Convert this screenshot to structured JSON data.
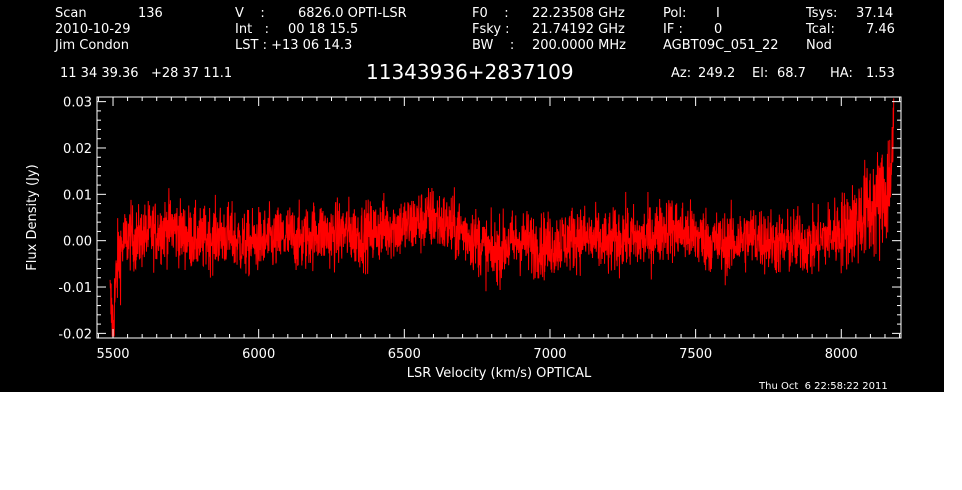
{
  "header": {
    "scan_label": "Scan",
    "scan_number": "136",
    "date": "2010-10-29",
    "observer": "Jim Condon",
    "v_label": "V    :",
    "v_value": "6826.0 OPTI-LSR",
    "int_label": "Int   :",
    "int_value": "00 18 15.5",
    "lst_label": "LST : +13 06 14.3",
    "f0_label": "F0    :",
    "f0_value": "22.23508 GHz",
    "fsky_label": "Fsky :",
    "fsky_value": "21.74192 GHz",
    "bw_label": "BW    :",
    "bw_value": "200.0000 MHz",
    "pol_label": "Pol:",
    "pol_value": "I",
    "if_label": "IF :",
    "if_value": "0",
    "project": "AGBT09C_051_22",
    "tsys_label": "Tsys:",
    "tsys_value": "37.14",
    "tcal_label": "Tcal:",
    "tcal_value": "7.46",
    "mode": "Nod",
    "coords": "11 34 39.36   +28 37 11.1",
    "source": "11343936+2837109",
    "az_label": "Az:",
    "az_value": "249.2",
    "el_label": "El:",
    "el_value": "68.7",
    "ha_label": "HA:",
    "ha_value": "1.53",
    "timestamp": "Thu Oct  6 22:58:22 2011"
  },
  "colors": {
    "background": "#000000",
    "axes": "#ffffff",
    "trace": "#ff0000"
  },
  "chart_data": {
    "type": "line",
    "title": "11343936+2837109",
    "xlabel": "LSR Velocity (km/s) OPTICAL",
    "ylabel": "Flux Density (Jy)",
    "xlim": [
      5445,
      8205
    ],
    "ylim": [
      -0.021,
      0.031
    ],
    "x_ticks": [
      5500,
      6000,
      6500,
      7000,
      7500,
      8000
    ],
    "x_tick_labels": [
      "5500",
      "6000",
      "6500",
      "7000",
      "7500",
      "8000"
    ],
    "y_ticks": [
      -0.02,
      -0.01,
      0.0,
      0.01,
      0.02,
      0.03
    ],
    "y_tick_labels": [
      "-0.02",
      "-0.01",
      "0.00",
      "0.01",
      "0.02",
      "0.03"
    ],
    "grid": false,
    "series": [
      {
        "x": [
          5490,
          5500,
          5510,
          5520,
          5540,
          5560,
          5580,
          5600,
          5650,
          5700,
          5750,
          5800,
          5850,
          5900,
          5950,
          6000,
          6050,
          6100,
          6150,
          6200,
          6250,
          6300,
          6350,
          6400,
          6450,
          6500,
          6550,
          6600,
          6650,
          6700,
          6750,
          6800,
          6850,
          6900,
          6950,
          7000,
          7050,
          7100,
          7150,
          7200,
          7250,
          7300,
          7350,
          7400,
          7450,
          7500,
          7550,
          7600,
          7650,
          7700,
          7750,
          7800,
          7850,
          7900,
          7950,
          8000,
          8050,
          8100,
          8130,
          8150,
          8160,
          8170,
          8175,
          8180
        ],
        "y": [
          -0.013,
          -0.018,
          -0.009,
          -0.003,
          0.0,
          0.001,
          0.0,
          0.001,
          0.002,
          0.003,
          0.001,
          0.0,
          0.001,
          0.001,
          -0.001,
          0.0,
          0.0,
          0.001,
          0.0,
          0.002,
          0.001,
          0.002,
          0.001,
          0.002,
          0.003,
          0.003,
          0.004,
          0.005,
          0.003,
          0.002,
          0.0,
          -0.003,
          -0.001,
          0.0,
          -0.001,
          -0.001,
          0.0,
          0.001,
          0.0,
          -0.001,
          0.001,
          0.0,
          0.001,
          0.003,
          0.002,
          0.001,
          0.0,
          -0.001,
          0.0,
          0.001,
          0.0,
          -0.001,
          0.0,
          -0.001,
          0.001,
          0.002,
          0.004,
          0.007,
          0.008,
          0.01,
          0.012,
          0.015,
          0.019,
          0.023
        ],
        "noise_rms": 0.0035
      }
    ]
  }
}
